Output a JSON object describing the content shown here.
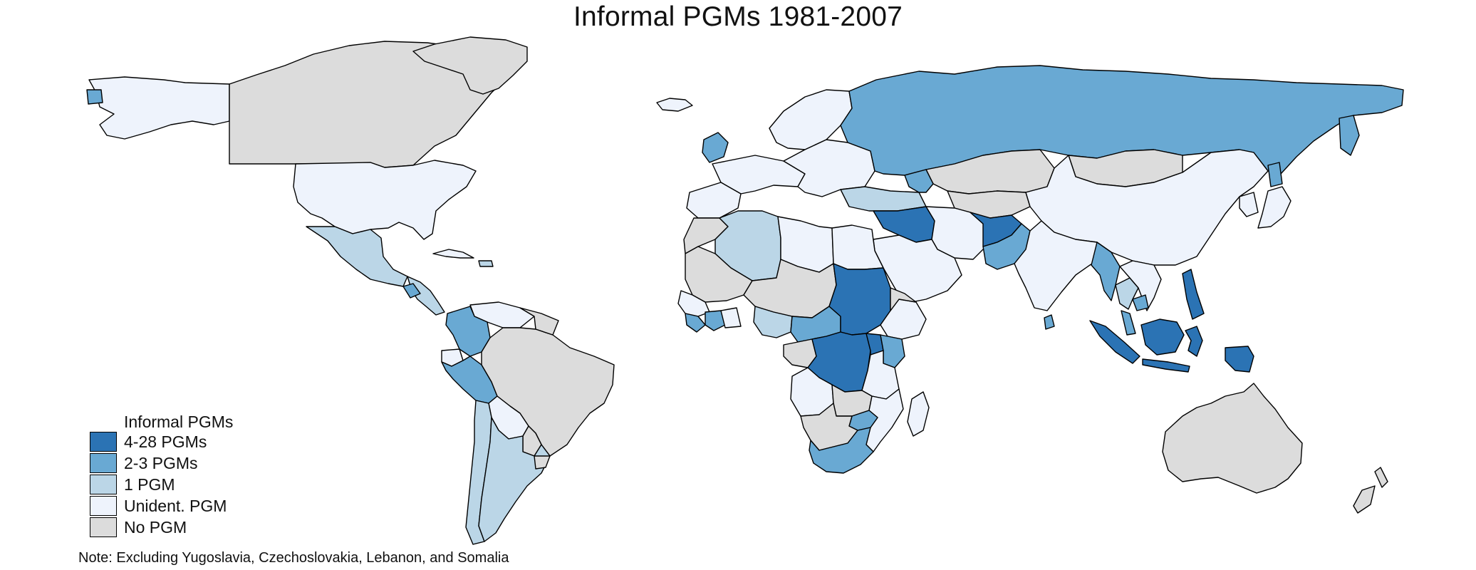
{
  "map": {
    "title": "Informal PGMs 1981-2007",
    "note": "Note: Excluding Yugoslavia, Czechoslovakia, Lebanon, and Somalia"
  },
  "legend": {
    "title": "Informal PGMs",
    "items": [
      {
        "key": "c4",
        "label": "4-28 PGMs",
        "color": "#2b73b4"
      },
      {
        "key": "c3",
        "label": "2-3 PGMs",
        "color": "#69a9d3"
      },
      {
        "key": "c2",
        "label": "1 PGM",
        "color": "#bbd6e7"
      },
      {
        "key": "c1",
        "label": "Unident. PGM",
        "color": "#eef3fc"
      },
      {
        "key": "c0",
        "label": "No PGM",
        "color": "#dcdcdc"
      }
    ]
  },
  "regions": [
    {
      "name": "Alaska",
      "category": "c1"
    },
    {
      "name": "Aleutian tip",
      "category": "c3"
    },
    {
      "name": "Canada",
      "category": "c0"
    },
    {
      "name": "United States",
      "category": "c1"
    },
    {
      "name": "Mexico",
      "category": "c2"
    },
    {
      "name": "Central America",
      "category": "c2"
    },
    {
      "name": "Guatemala",
      "category": "c3"
    },
    {
      "name": "Cuba",
      "category": "c1"
    },
    {
      "name": "Hispaniola",
      "category": "c2"
    },
    {
      "name": "Greenland",
      "category": "c0"
    },
    {
      "name": "Iceland",
      "category": "c1"
    },
    {
      "name": "Venezuela",
      "category": "c1"
    },
    {
      "name": "Colombia",
      "category": "c3"
    },
    {
      "name": "Ecuador",
      "category": "c1"
    },
    {
      "name": "Peru",
      "category": "c3"
    },
    {
      "name": "Brazil",
      "category": "c0"
    },
    {
      "name": "Guianas",
      "category": "c0"
    },
    {
      "name": "Bolivia",
      "category": "c1"
    },
    {
      "name": "Paraguay",
      "category": "c0"
    },
    {
      "name": "Chile",
      "category": "c2"
    },
    {
      "name": "Argentina",
      "category": "c2"
    },
    {
      "name": "Uruguay",
      "category": "c0"
    },
    {
      "name": "Western Europe",
      "category": "c1"
    },
    {
      "name": "Iberia",
      "category": "c1"
    },
    {
      "name": "United Kingdom",
      "category": "c3"
    },
    {
      "name": "Scandinavia",
      "category": "c1"
    },
    {
      "name": "Eastern Europe",
      "category": "c1"
    },
    {
      "name": "Russia",
      "category": "c3"
    },
    {
      "name": "Kamchatka",
      "category": "c3"
    },
    {
      "name": "Sakhalin",
      "category": "c3"
    },
    {
      "name": "Kazakhstan",
      "category": "c0"
    },
    {
      "name": "Central Asia",
      "category": "c0"
    },
    {
      "name": "Mongolia",
      "category": "c0"
    },
    {
      "name": "China",
      "category": "c1"
    },
    {
      "name": "Japan",
      "category": "c1"
    },
    {
      "name": "Korea",
      "category": "c1"
    },
    {
      "name": "Turkey",
      "category": "c2"
    },
    {
      "name": "Georgia-Azerbaijan",
      "category": "c3"
    },
    {
      "name": "Syria-Iraq",
      "category": "c4"
    },
    {
      "name": "Iran",
      "category": "c1"
    },
    {
      "name": "Arabia",
      "category": "c1"
    },
    {
      "name": "Afghanistan",
      "category": "c4"
    },
    {
      "name": "Pakistan",
      "category": "c3"
    },
    {
      "name": "India",
      "category": "c1"
    },
    {
      "name": "Sri Lanka",
      "category": "c3"
    },
    {
      "name": "Myanmar",
      "category": "c3"
    },
    {
      "name": "Thailand",
      "category": "c2"
    },
    {
      "name": "Indochina",
      "category": "c1"
    },
    {
      "name": "Cambodia",
      "category": "c3"
    },
    {
      "name": "Malay Peninsula",
      "category": "c3"
    },
    {
      "name": "Philippines",
      "category": "c4"
    },
    {
      "name": "Sumatra",
      "category": "c4"
    },
    {
      "name": "Java",
      "category": "c4"
    },
    {
      "name": "Borneo",
      "category": "c4"
    },
    {
      "name": "Sulawesi",
      "category": "c4"
    },
    {
      "name": "Papua",
      "category": "c4"
    },
    {
      "name": "Australia",
      "category": "c0"
    },
    {
      "name": "New Zealand North",
      "category": "c0"
    },
    {
      "name": "New Zealand South",
      "category": "c0"
    },
    {
      "name": "Morocco",
      "category": "c0"
    },
    {
      "name": "Algeria",
      "category": "c2"
    },
    {
      "name": "Libya",
      "category": "c1"
    },
    {
      "name": "Egypt",
      "category": "c1"
    },
    {
      "name": "Mauritania-Mali",
      "category": "c0"
    },
    {
      "name": "Niger-Chad",
      "category": "c0"
    },
    {
      "name": "Senegal-Guinea",
      "category": "c1"
    },
    {
      "name": "Liberia-Sierra Leone",
      "category": "c3"
    },
    {
      "name": "Cote d'Ivoire",
      "category": "c3"
    },
    {
      "name": "Ghana-Togo",
      "category": "c1"
    },
    {
      "name": "Nigeria",
      "category": "c2"
    },
    {
      "name": "Cameroon-CAR",
      "category": "c3"
    },
    {
      "name": "Sudan",
      "category": "c4"
    },
    {
      "name": "Ethiopia",
      "category": "c1"
    },
    {
      "name": "Eritrea-Djibouti",
      "category": "c0"
    },
    {
      "name": "Gabon-Congo",
      "category": "c0"
    },
    {
      "name": "DR Congo",
      "category": "c4"
    },
    {
      "name": "Uganda-Rwanda",
      "category": "c4"
    },
    {
      "name": "Kenya",
      "category": "c3"
    },
    {
      "name": "Tanzania",
      "category": "c1"
    },
    {
      "name": "Angola",
      "category": "c1"
    },
    {
      "name": "Zambia",
      "category": "c0"
    },
    {
      "name": "Mozambique",
      "category": "c1"
    },
    {
      "name": "Zimbabwe",
      "category": "c3"
    },
    {
      "name": "Namibia-Botswana",
      "category": "c0"
    },
    {
      "name": "South Africa",
      "category": "c3"
    },
    {
      "name": "Madagascar",
      "category": "c1"
    }
  ]
}
